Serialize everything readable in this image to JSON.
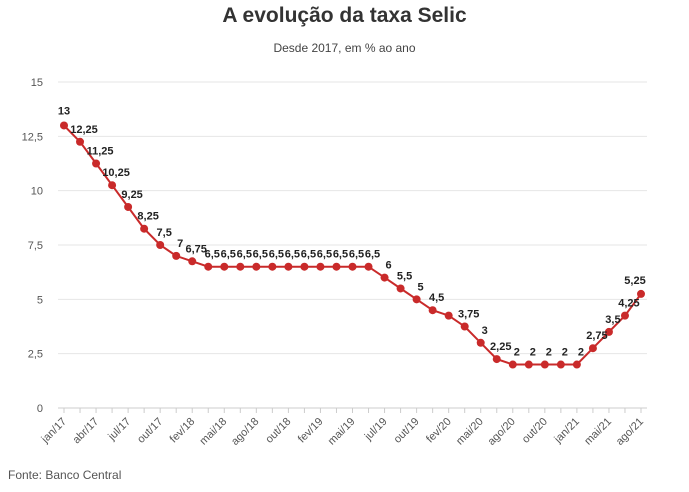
{
  "title": "A evolução da taxa Selic",
  "subtitle": "Desde 2017, em % ao ano",
  "source": "Fonte: Banco Central",
  "colors": {
    "line": "#c92a2a",
    "grid": "#e6e6e6",
    "axis": "#cccccc"
  },
  "chart_data": {
    "type": "line",
    "title": "A evolução da taxa Selic",
    "subtitle": "Desde 2017, em % ao ano",
    "xlabel": "",
    "ylabel": "",
    "ylim": [
      0,
      15
    ],
    "yticks": [
      "0",
      "2,5",
      "5",
      "7,5",
      "10",
      "12,5",
      "15"
    ],
    "yvalues": [
      0,
      2.5,
      5,
      7.5,
      10,
      12.5,
      15
    ],
    "xticks": [
      "jan/17",
      "abr/17",
      "jul/17",
      "out/17",
      "fev/18",
      "mai/18",
      "ago/18",
      "out/18",
      "fev/19",
      "mai/19",
      "jul/19",
      "out/19",
      "fev/20",
      "mai/20",
      "ago/20",
      "out/20",
      "jan/21",
      "mai/21",
      "ago/21"
    ],
    "grid": true,
    "legend": "none",
    "series": [
      {
        "values": [
          13,
          12.25,
          11.25,
          10.25,
          9.25,
          8.25,
          7.5,
          7,
          6.75,
          6.5,
          6.5,
          6.5,
          6.5,
          6.5,
          6.5,
          6.5,
          6.5,
          6.5,
          6.5,
          6.5,
          6,
          5.5,
          5,
          4.5,
          4.25,
          3.75,
          3,
          2.25,
          2,
          2,
          2,
          2,
          2,
          2.75,
          3.5,
          4.25,
          5.25
        ],
        "labels": [
          "13",
          "12,25",
          "11,25",
          "10,25",
          "9,25",
          "8,25",
          "7,5",
          "7",
          "6,75",
          "6,5",
          "6,5",
          "6,5",
          "6,5",
          "6,5",
          "6,5",
          "6,5",
          "6,5",
          "6,5",
          "6,5",
          "6,5",
          "6",
          "5,5",
          "5",
          "4,5",
          "",
          "3,75",
          "3",
          "2,25",
          "2",
          "2",
          "2",
          "2",
          "2",
          "2,75",
          "3,5",
          "4,25",
          "5,25"
        ]
      }
    ]
  }
}
